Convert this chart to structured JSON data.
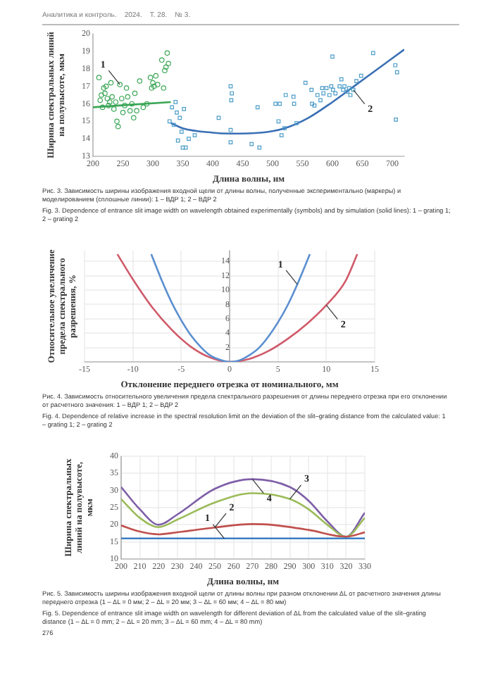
{
  "chart_data": [
    {
      "type": "scatter",
      "title": "Аналитика и контроль.    2024.    Т. 28.    № 3.",
      "xlabel": "Длина волны, нм",
      "ylabel": "Ширина спектральных линий на полувысоте, мкм",
      "xlim": [
        200,
        720
      ],
      "xticks": [
        200,
        250,
        300,
        350,
        400,
        450,
        500,
        550,
        600,
        650,
        700
      ],
      "ylim": [
        13,
        20
      ],
      "yticks": [
        13,
        14,
        15,
        16,
        17,
        18,
        19,
        20
      ],
      "grid": false,
      "legend": false,
      "series": [
        {
          "type": "scatter",
          "marker": "circle",
          "color": "#3aa655",
          "x": [
            210,
            212,
            214,
            216,
            218,
            220,
            222,
            224,
            226,
            228,
            230,
            232,
            235,
            238,
            240,
            242,
            245,
            248,
            250,
            253,
            256,
            258,
            262,
            265,
            268,
            270,
            273,
            278,
            284,
            290,
            296,
            298,
            300,
            302,
            305,
            308,
            315,
            318,
            320,
            322,
            324,
            326
          ],
          "values": [
            17.5,
            16.2,
            16.5,
            15.8,
            16.9,
            16.6,
            17.0,
            16.3,
            15.9,
            16.1,
            17.2,
            16.4,
            15.7,
            16.1,
            15.0,
            14.7,
            17.1,
            16.3,
            15.5,
            15.9,
            16.9,
            16.4,
            15.6,
            16.0,
            15.2,
            16.6,
            15.6,
            17.3,
            15.8,
            16.0,
            17.5,
            16.9,
            17.2,
            17.0,
            17.6,
            17.1,
            18.5,
            16.9,
            17.9,
            18.1,
            18.9,
            18.3
          ]
        },
        {
          "type": "scatter",
          "marker": "square",
          "color": "#4a9cc9",
          "x": [
            328,
            332,
            335,
            338,
            340,
            342,
            345,
            348,
            350,
            352,
            355,
            360,
            370,
            410,
            430,
            432,
            431,
            430,
            430,
            465,
            475,
            478,
            505,
            510,
            512,
            515,
            520,
            522,
            535,
            536,
            540,
            555,
            565,
            566,
            570,
            575,
            580,
            583,
            585,
            590,
            595,
            598,
            600,
            601,
            605,
            612,
            615,
            618,
            620,
            625,
            628,
            630,
            635,
            640,
            648,
            668,
            705,
            708,
            706
          ],
          "values": [
            15.0,
            15.8,
            14.8,
            16.1,
            15.5,
            13.9,
            15.2,
            14.4,
            13.5,
            15.7,
            13.5,
            14.0,
            14.2,
            15.2,
            17.0,
            16.6,
            16.2,
            14.5,
            13.8,
            13.7,
            15.8,
            13.5,
            16.0,
            15.0,
            16.0,
            14.2,
            14.6,
            16.5,
            16.4,
            16.0,
            14.9,
            17.2,
            16.8,
            16.0,
            15.9,
            16.5,
            16.2,
            16.9,
            16.6,
            16.9,
            16.5,
            17.0,
            18.7,
            16.8,
            16.6,
            17.0,
            17.4,
            16.8,
            17.0,
            16.7,
            16.9,
            16.5,
            16.8,
            17.3,
            17.6,
            18.9,
            18.2,
            17.8,
            15.1
          ]
        },
        {
          "type": "line",
          "marker": "none",
          "color": "#3aa655",
          "x": [
            200,
            330
          ],
          "values": [
            15.8,
            16.1
          ]
        },
        {
          "type": "line",
          "marker": "none",
          "color": "#3a6fb5",
          "x": [
            330,
            350,
            400,
            430,
            480,
            520,
            560,
            600,
            640,
            680,
            720
          ],
          "values": [
            14.9,
            14.6,
            14.35,
            14.3,
            14.35,
            14.6,
            15.2,
            16.1,
            17.1,
            18.1,
            19.1
          ]
        }
      ],
      "annotations": [
        {
          "text": "1",
          "x": 245,
          "y": 17.1
        },
        {
          "text": "2",
          "x": 635,
          "y": 16.8
        },
        "Рис. 3. Зависимость ширины изображения входной щели от длины волны, полученные экспериментально (маркеры) и моделированием (сплошные линии): 1 – ВДР 1; 2 – ВДР 2",
        "Fig. 3. Dependence of entrance slit image width on wavelength obtained experimentally (symbols) and by simulation (solid lines): 1 – grating 1; 2 – grating 2"
      ]
    },
    {
      "type": "line",
      "xlabel": "Отклонение переднего отрезка от номинального, мм",
      "ylabel": "Относительное увеличение предела спектрального разрешения, %",
      "xlim": [
        -15,
        15
      ],
      "xticks": [
        -15,
        -10,
        -5,
        0,
        5,
        10,
        15
      ],
      "ylim": [
        0,
        15.5
      ],
      "yticks": [
        {
          "value": 0,
          "label": null
        },
        2,
        4,
        6,
        8,
        10,
        12,
        14
      ],
      "grid": true,
      "legend": false,
      "marker": "none",
      "series": [
        {
          "color": "#5b8fd0",
          "x": [
            -8.1,
            -7,
            -6,
            -5,
            -4,
            -3,
            -2,
            -1,
            0,
            1,
            2,
            3,
            4,
            5,
            6,
            7,
            8.3
          ],
          "values": [
            15,
            11.3,
            8.3,
            5.8,
            3.7,
            2.1,
            0.9,
            0.3,
            0,
            0.2,
            0.9,
            1.9,
            3.5,
            5.5,
            7.9,
            10.8,
            15
          ]
        },
        {
          "color": "#d05a6a",
          "x": [
            -11.6,
            -10,
            -8,
            -6,
            -4,
            -2,
            0,
            2,
            4,
            6,
            8,
            10,
            12,
            13.2
          ],
          "values": [
            15,
            11.5,
            7.6,
            4.5,
            2.1,
            0.6,
            0,
            0.4,
            1.5,
            3.2,
            5.3,
            7.9,
            11.3,
            15
          ]
        }
      ],
      "annotations": [
        {
          "text": "1",
          "x": 7,
          "y": 10.8
        },
        {
          "text": "2",
          "x": 10,
          "y": 7.9
        },
        "Рис. 4. Зависимость относительного увеличения предела спектрального разрешения от длины переднего отрезка при его отклонении от расчетного значения: 1 – ВДР 1; 2 – ВДР 2",
        "Fig. 4. Dependence of relative increase in the spectral resolution limit on the deviation of the slit–grating distance from the calculated value: 1 – grating 1; 2 – grating 2"
      ]
    },
    {
      "type": "line",
      "xlabel": "Длина волны, нм",
      "ylabel": "Ширина спектральных линий на полувысоте, мкм",
      "xlim": [
        200,
        330
      ],
      "xticks": [
        200,
        210,
        220,
        230,
        240,
        250,
        260,
        270,
        280,
        290,
        300,
        310,
        320,
        330
      ],
      "ylim": [
        10,
        40
      ],
      "yticks": [
        10,
        15,
        20,
        25,
        30,
        35,
        40
      ],
      "grid": true,
      "legend": false,
      "marker": "none",
      "series": [
        {
          "color": "#3c7ec4",
          "x": [
            200,
            330
          ],
          "values": [
            16,
            16
          ]
        },
        {
          "color": "#c0504d",
          "x": [
            200,
            210,
            220,
            230,
            250,
            270,
            280,
            300,
            320,
            330
          ],
          "values": [
            19.8,
            18,
            17.2,
            17.8,
            19.2,
            20.2,
            20,
            18.5,
            16.5,
            17.8
          ]
        },
        {
          "color": "#9bbb59",
          "x": [
            200,
            210,
            220,
            230,
            250,
            270,
            290,
            300,
            310,
            320,
            330
          ],
          "values": [
            27.5,
            22,
            19.3,
            21.5,
            26.5,
            29.2,
            27.5,
            24.5,
            20,
            16.5,
            22
          ]
        },
        {
          "color": "#7f5fa8",
          "x": [
            200,
            210,
            220,
            230,
            250,
            270,
            290,
            300,
            310,
            320,
            330
          ],
          "values": [
            31,
            24.5,
            20,
            23,
            30.5,
            33.3,
            31,
            27,
            21,
            16.5,
            23.5
          ]
        }
      ],
      "annotations": [
        {
          "text": "1",
          "x": 255,
          "y": 16
        },
        {
          "text": "2",
          "x": 250,
          "y": 19.2
        },
        {
          "text": "3",
          "x": 290,
          "y": 27.5
        },
        {
          "text": "4",
          "x": 270,
          "y": 33.3
        },
        "Рис. 5. Зависимость ширины изображения входной щели от длины волны при разном отклонении ΔL от расчетного значения длины переднего отрезка (1 – ΔL = 0 мм; 2 – ΔL = 20 мм; 3 – ΔL = 60 мм; 4 – ΔL = 80 мм)",
        "Fig. 5. Dependence of entrance slit image width on wavelength for different deviation of ΔL from the calculated value of the slit–grating distance (1 – ΔL = 0 mm; 2 – ΔL = 20 mm; 3 – ΔL = 60 mm; 4 – ΔL = 80 mm)",
        "276"
      ]
    }
  ]
}
